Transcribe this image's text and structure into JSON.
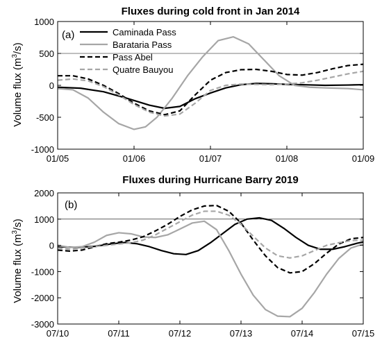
{
  "chart_data": [
    {
      "type": "line",
      "panel_label": "(a)",
      "title": "Fluxes during cold front in Jan 2014",
      "ylabel_main": "Volume flux (m",
      "ylabel_sup": "3",
      "ylabel_tail": "/s)",
      "xlim": [
        0,
        4
      ],
      "ylim": [
        -1000,
        1000
      ],
      "xticks": [
        0,
        1,
        2,
        3,
        4
      ],
      "xtick_labels": [
        "01/05",
        "01/06",
        "01/07",
        "01/08",
        "01/09"
      ],
      "yticks": [
        -1000,
        -500,
        0,
        500,
        1000
      ],
      "ytick_labels": [
        "-1000",
        "-500",
        "0",
        "500",
        "1000"
      ],
      "reference_line": 500,
      "legend_position": "top-left",
      "series": [
        {
          "name": "Caminada Pass",
          "color": "#000000",
          "dash": "solid",
          "x": [
            0,
            0.3,
            0.6,
            0.9,
            1.2,
            1.4,
            1.6,
            1.8,
            2.0,
            2.2,
            2.4,
            2.6,
            2.8,
            3.0,
            3.2,
            3.5,
            3.8,
            4.0
          ],
          "y": [
            -30,
            -45,
            -100,
            -200,
            -310,
            -360,
            -330,
            -210,
            -120,
            -40,
            10,
            30,
            25,
            15,
            10,
            0,
            5,
            10
          ]
        },
        {
          "name": "Barataria Pass",
          "color": "#a6a6a6",
          "dash": "solid",
          "x": [
            0,
            0.2,
            0.4,
            0.6,
            0.8,
            1.0,
            1.15,
            1.3,
            1.5,
            1.7,
            1.9,
            2.1,
            2.3,
            2.5,
            2.7,
            2.9,
            3.1,
            3.3,
            3.5,
            3.8,
            4.0
          ],
          "y": [
            -50,
            -70,
            -200,
            -420,
            -600,
            -690,
            -650,
            -500,
            -200,
            150,
            450,
            700,
            760,
            650,
            400,
            150,
            0,
            -30,
            -40,
            -50,
            -70
          ]
        },
        {
          "name": "Pass Abel",
          "color": "#000000",
          "dash": "dash",
          "x": [
            0,
            0.2,
            0.4,
            0.6,
            0.8,
            1.0,
            1.2,
            1.4,
            1.6,
            1.8,
            2.0,
            2.2,
            2.4,
            2.6,
            2.8,
            3.0,
            3.2,
            3.4,
            3.6,
            3.8,
            4.0
          ],
          "y": [
            150,
            150,
            100,
            0,
            -130,
            -280,
            -400,
            -460,
            -400,
            -150,
            80,
            200,
            245,
            250,
            220,
            170,
            160,
            200,
            260,
            310,
            330
          ]
        },
        {
          "name": "Quatre Bauyou",
          "color": "#a6a6a6",
          "dash": "dash",
          "x": [
            0,
            0.2,
            0.4,
            0.6,
            0.8,
            1.0,
            1.2,
            1.4,
            1.6,
            1.8,
            2.0,
            2.2,
            2.4,
            2.6,
            2.8,
            3.0,
            3.2,
            3.4,
            3.6,
            3.8,
            4.0
          ],
          "y": [
            80,
            100,
            70,
            -20,
            -150,
            -300,
            -420,
            -480,
            -450,
            -280,
            -80,
            0,
            20,
            15,
            10,
            20,
            40,
            80,
            130,
            180,
            220
          ]
        }
      ]
    },
    {
      "type": "line",
      "panel_label": "(b)",
      "title": "Fluxes during Hurricane Barry 2019",
      "ylabel_main": "Volume flux (m",
      "ylabel_sup": "3",
      "ylabel_tail": "/s)",
      "xlim": [
        0,
        5
      ],
      "ylim": [
        -3000,
        2000
      ],
      "xticks": [
        0,
        1,
        2,
        3,
        4,
        5
      ],
      "xtick_labels": [
        "07/10",
        "07/11",
        "07/12",
        "07/13",
        "07/14",
        "07/15"
      ],
      "yticks": [
        -3000,
        -2000,
        -1000,
        0,
        1000,
        2000
      ],
      "ytick_labels": [
        "-3000",
        "-2000",
        "-1000",
        "0",
        "1000",
        "2000"
      ],
      "reference_line": 1000,
      "series": [
        {
          "name": "Caminada Pass",
          "color": "#000000",
          "dash": "solid",
          "x": [
            0,
            0.3,
            0.6,
            0.9,
            1.1,
            1.3,
            1.5,
            1.7,
            1.9,
            2.1,
            2.3,
            2.5,
            2.7,
            2.9,
            3.1,
            3.3,
            3.5,
            3.7,
            3.9,
            4.1,
            4.3,
            4.5,
            4.7,
            4.9,
            5.0
          ],
          "y": [
            -50,
            -80,
            -40,
            60,
            110,
            60,
            -50,
            -200,
            -320,
            -350,
            -200,
            100,
            450,
            800,
            1000,
            1050,
            950,
            650,
            300,
            0,
            -150,
            -150,
            -50,
            80,
            130
          ]
        },
        {
          "name": "Barataria Pass",
          "color": "#a6a6a6",
          "dash": "solid",
          "x": [
            0,
            0.2,
            0.4,
            0.6,
            0.8,
            1.0,
            1.2,
            1.4,
            1.6,
            1.8,
            2.0,
            2.2,
            2.4,
            2.6,
            2.8,
            3.0,
            3.2,
            3.4,
            3.6,
            3.8,
            4.0,
            4.2,
            4.4,
            4.6,
            4.8,
            5.0
          ],
          "y": [
            0,
            -80,
            -50,
            120,
            380,
            480,
            440,
            320,
            300,
            400,
            620,
            850,
            920,
            600,
            -200,
            -1100,
            -1900,
            -2450,
            -2700,
            -2720,
            -2400,
            -1800,
            -1100,
            -500,
            -100,
            50
          ]
        },
        {
          "name": "Pass Abel",
          "color": "#000000",
          "dash": "dash",
          "x": [
            0,
            0.2,
            0.4,
            0.6,
            0.8,
            1.0,
            1.2,
            1.4,
            1.6,
            1.8,
            2.0,
            2.2,
            2.4,
            2.6,
            2.8,
            3.0,
            3.2,
            3.4,
            3.6,
            3.8,
            4.0,
            4.2,
            4.4,
            4.6,
            4.8,
            5.0
          ],
          "y": [
            -180,
            -220,
            -180,
            -60,
            60,
            120,
            200,
            330,
            550,
            800,
            1100,
            1350,
            1500,
            1520,
            1300,
            850,
            200,
            -400,
            -850,
            -1050,
            -1000,
            -700,
            -300,
            50,
            250,
            300
          ]
        },
        {
          "name": "Quatre Bauyou",
          "color": "#a6a6a6",
          "dash": "dash",
          "x": [
            0,
            0.2,
            0.4,
            0.6,
            0.8,
            1.0,
            1.2,
            1.4,
            1.6,
            1.8,
            2.0,
            2.2,
            2.4,
            2.6,
            2.8,
            3.0,
            3.2,
            3.4,
            3.6,
            3.8,
            4.0,
            4.2,
            4.4,
            4.6,
            4.8,
            5.0
          ],
          "y": [
            -100,
            -150,
            -100,
            -50,
            0,
            50,
            100,
            200,
            400,
            650,
            900,
            1150,
            1300,
            1300,
            1150,
            800,
            350,
            -100,
            -400,
            -480,
            -400,
            -200,
            0,
            100,
            180,
            200
          ]
        }
      ]
    }
  ]
}
